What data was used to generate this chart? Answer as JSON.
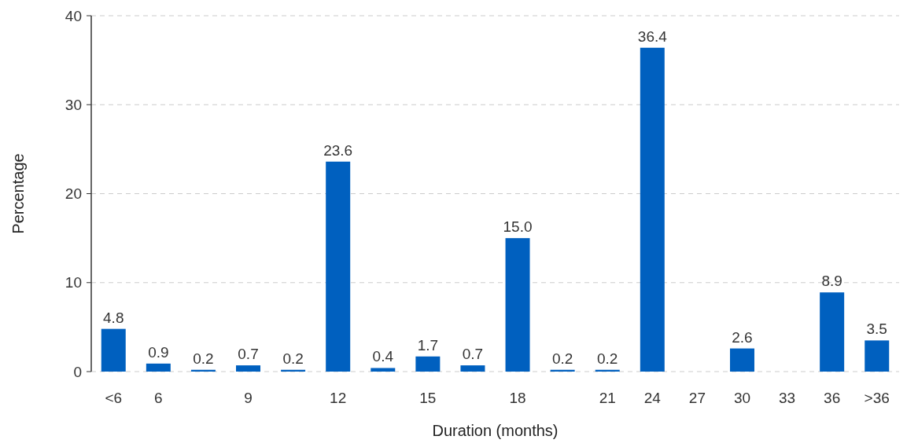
{
  "chart_data": {
    "type": "bar",
    "xlabel": "Duration (months)",
    "ylabel": "Percentage",
    "categories": [
      "<6",
      "6",
      null,
      "9",
      null,
      "12",
      null,
      "15",
      null,
      "18",
      null,
      "21",
      "24",
      "27",
      "30",
      "33",
      "36",
      ">36"
    ],
    "values": [
      4.8,
      0.9,
      0.2,
      0.7,
      0.2,
      23.6,
      0.4,
      1.7,
      0.7,
      15.0,
      0.2,
      0.2,
      36.4,
      null,
      2.6,
      null,
      8.9,
      3.5
    ],
    "value_labels": [
      "4.8",
      "0.9",
      "0.2",
      "0.7",
      "0.2",
      "23.6",
      "0.4",
      "1.7",
      "0.7",
      "15.0",
      "0.2",
      "0.2",
      "36.4",
      null,
      "2.6",
      null,
      "8.9",
      "3.5"
    ],
    "color": "#0060bf",
    "ylim": [
      0,
      40
    ],
    "yticks": [
      0,
      10,
      20,
      30,
      40
    ],
    "grid": "y"
  }
}
